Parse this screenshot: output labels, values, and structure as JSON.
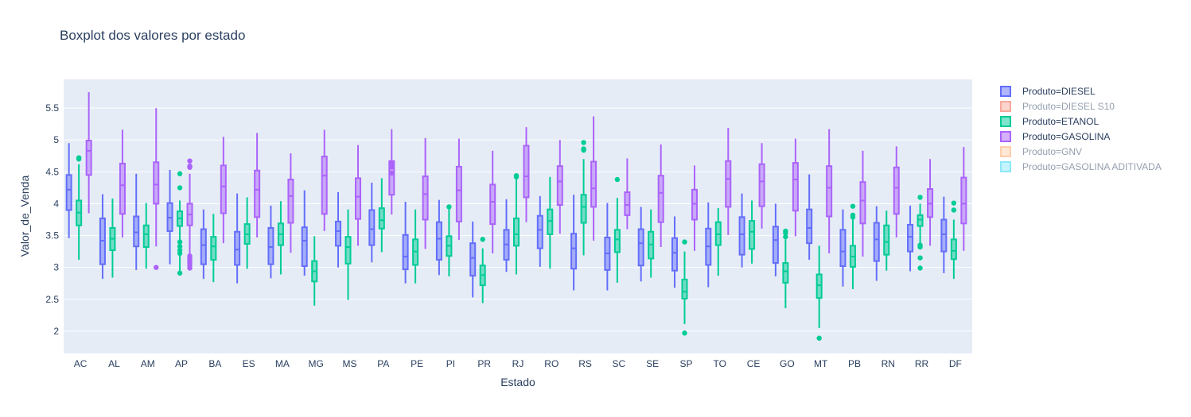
{
  "chart_data": {
    "type": "box",
    "title": "Boxplot dos valores por estado",
    "xlabel": "Estado",
    "ylabel": "Valor_de_Venda",
    "ylim": [
      1.65,
      5.95
    ],
    "yticks": [
      2,
      2.5,
      3,
      3.5,
      4,
      4.5,
      5,
      5.5
    ],
    "ytick_labels": [
      "2",
      "2.5",
      "3",
      "3.5",
      "4",
      "4.5",
      "5",
      "5.5"
    ],
    "categories": [
      "AC",
      "AL",
      "AM",
      "AP",
      "BA",
      "ES",
      "MA",
      "MG",
      "MS",
      "PA",
      "PE",
      "PI",
      "PR",
      "RJ",
      "RO",
      "RS",
      "SC",
      "SE",
      "SP",
      "TO",
      "CE",
      "GO",
      "MT",
      "PB",
      "RN",
      "RR",
      "DF"
    ],
    "legend_position": "right",
    "grid": true,
    "legend": [
      {
        "label": "Produto=DIESEL",
        "color": "#636efa",
        "visible": true
      },
      {
        "label": "Produto=DIESEL S10",
        "color": "#ef553b",
        "visible": false
      },
      {
        "label": "Produto=ETANOL",
        "color": "#00cc96",
        "visible": true
      },
      {
        "label": "Produto=GASOLINA",
        "color": "#ab63fa",
        "visible": true
      },
      {
        "label": "Produto=GNV",
        "color": "#ffa15a",
        "visible": false
      },
      {
        "label": "Produto=GASOLINA ADITIVADA",
        "color": "#19d3f3",
        "visible": false
      }
    ],
    "series": [
      {
        "name": "Produto=DIESEL",
        "color": "#636efa",
        "boxes": [
          [
            3.46,
            3.9,
            4.22,
            4.45,
            4.95
          ],
          [
            2.82,
            3.05,
            3.42,
            3.77,
            4.15
          ],
          [
            2.96,
            3.33,
            3.55,
            3.8,
            4.47
          ],
          [
            3.05,
            3.57,
            3.78,
            4.01,
            4.53
          ],
          [
            2.82,
            3.05,
            3.35,
            3.6,
            3.91
          ],
          [
            2.75,
            3.04,
            3.28,
            3.56,
            4.16
          ],
          [
            2.83,
            3.05,
            3.32,
            3.62,
            3.97
          ],
          [
            2.87,
            3.02,
            3.42,
            3.63,
            4.21
          ],
          [
            3.0,
            3.34,
            3.57,
            3.72,
            4.18
          ],
          [
            3.08,
            3.35,
            3.6,
            3.9,
            4.33
          ],
          [
            2.75,
            2.97,
            3.17,
            3.51,
            4.03
          ],
          [
            2.88,
            3.12,
            3.45,
            3.71,
            4.06
          ],
          [
            2.53,
            2.87,
            3.15,
            3.38,
            3.72
          ],
          [
            2.93,
            3.12,
            3.36,
            3.59,
            4.07
          ],
          [
            3.01,
            3.3,
            3.59,
            3.81,
            4.12
          ],
          [
            2.64,
            2.98,
            3.3,
            3.53,
            4.14
          ],
          [
            2.64,
            2.96,
            3.22,
            3.47,
            4.01
          ],
          [
            2.78,
            3.03,
            3.38,
            3.6,
            3.95
          ],
          [
            2.68,
            2.95,
            3.23,
            3.46,
            3.8
          ],
          [
            2.69,
            3.04,
            3.33,
            3.61,
            4.02
          ],
          [
            3.0,
            3.2,
            3.52,
            3.79,
            4.16
          ],
          [
            2.86,
            3.07,
            3.43,
            3.64,
            4.0
          ],
          [
            3.12,
            3.38,
            3.62,
            3.91,
            4.46
          ],
          [
            2.7,
            3.02,
            3.25,
            3.59,
            3.91
          ],
          [
            2.79,
            3.1,
            3.44,
            3.7,
            3.96
          ],
          [
            2.94,
            3.25,
            3.48,
            3.67,
            3.97
          ],
          [
            2.91,
            3.25,
            3.52,
            3.75,
            4.11
          ]
        ],
        "outliers": [
          [],
          [],
          [],
          [],
          [],
          [],
          [],
          [],
          [],
          [],
          [],
          [],
          [],
          [],
          [],
          [],
          [],
          [],
          [],
          [],
          [],
          [],
          [],
          [],
          [],
          [],
          []
        ]
      },
      {
        "name": "Produto=ETANOL",
        "color": "#00cc96",
        "boxes": [
          [
            3.12,
            3.66,
            3.86,
            4.05,
            4.62
          ],
          [
            2.84,
            3.27,
            3.45,
            3.62,
            4.08
          ],
          [
            2.98,
            3.32,
            3.52,
            3.66,
            4.01
          ],
          [
            2.91,
            3.65,
            3.77,
            3.88,
            4.05
          ],
          [
            2.77,
            3.12,
            3.33,
            3.48,
            3.84
          ],
          [
            2.98,
            3.37,
            3.52,
            3.68,
            4.1
          ],
          [
            2.89,
            3.35,
            3.52,
            3.69,
            4.04
          ],
          [
            2.4,
            2.78,
            2.94,
            3.1,
            3.49
          ],
          [
            2.49,
            3.06,
            3.32,
            3.48,
            3.91
          ],
          [
            3.24,
            3.61,
            3.74,
            3.93,
            4.4
          ],
          [
            2.75,
            3.04,
            3.25,
            3.44,
            3.91
          ],
          [
            2.86,
            3.18,
            3.34,
            3.49,
            3.93
          ],
          [
            2.44,
            2.72,
            2.88,
            3.03,
            3.3
          ],
          [
            2.89,
            3.34,
            3.52,
            3.77,
            4.4
          ],
          [
            2.98,
            3.52,
            3.73,
            3.91,
            4.42
          ],
          [
            3.19,
            3.7,
            3.95,
            4.14,
            4.7
          ],
          [
            2.76,
            3.24,
            3.44,
            3.59,
            4.09
          ],
          [
            2.84,
            3.14,
            3.36,
            3.56,
            3.91
          ],
          [
            2.11,
            2.51,
            2.62,
            2.81,
            3.25
          ],
          [
            2.87,
            3.35,
            3.52,
            3.71,
            3.93
          ],
          [
            3.06,
            3.29,
            3.56,
            3.73,
            4.05
          ],
          [
            2.36,
            2.76,
            2.94,
            3.07,
            3.44
          ],
          [
            2.05,
            2.52,
            2.72,
            2.89,
            3.34
          ],
          [
            2.66,
            3.01,
            3.17,
            3.34,
            3.8
          ],
          [
            2.95,
            3.2,
            3.4,
            3.66,
            3.89
          ],
          [
            3.34,
            3.65,
            3.75,
            3.82,
            4.0
          ],
          [
            2.82,
            3.13,
            3.26,
            3.44,
            3.75
          ]
        ],
        "outliers": [
          [
            4.7,
            4.72
          ],
          [],
          [],
          [
            2.91,
            3.22,
            3.27,
            3.33,
            3.4,
            4.25,
            4.47
          ],
          [],
          [],
          [],
          [],
          [],
          [],
          [],
          [
            3.95
          ],
          [
            3.44
          ],
          [
            4.42,
            4.44
          ],
          [],
          [
            4.84,
            4.86,
            4.96
          ],
          [
            4.38
          ],
          [],
          [
            1.97,
            3.4
          ],
          [],
          [],
          [
            3.48,
            3.54,
            3.57
          ],
          [
            1.89
          ],
          [
            3.79,
            3.82,
            3.96
          ],
          [],
          [
            2.99,
            3.15,
            3.32,
            3.35,
            4.1
          ],
          [
            3.9,
            4.01
          ]
        ]
      },
      {
        "name": "Produto=GASOLINA",
        "color": "#ab63fa",
        "boxes": [
          [
            3.85,
            4.45,
            4.83,
            4.99,
            5.75
          ],
          [
            3.47,
            3.84,
            4.29,
            4.63,
            5.16
          ],
          [
            3.33,
            4.0,
            4.3,
            4.65,
            5.5
          ],
          [
            3.2,
            3.66,
            3.83,
            4.0,
            4.47
          ],
          [
            3.38,
            3.85,
            4.27,
            4.6,
            5.05
          ],
          [
            3.47,
            3.79,
            4.22,
            4.52,
            5.11
          ],
          [
            3.23,
            3.7,
            4.12,
            4.38,
            4.79
          ],
          [
            3.57,
            3.84,
            4.44,
            4.74,
            5.16
          ],
          [
            3.34,
            3.76,
            4.11,
            4.4,
            4.92
          ],
          [
            3.83,
            4.14,
            4.55,
            4.67,
            5.17
          ],
          [
            3.29,
            3.75,
            4.15,
            4.43,
            5.03
          ],
          [
            3.43,
            3.72,
            4.21,
            4.58,
            5.02
          ],
          [
            3.22,
            3.68,
            4.03,
            4.3,
            4.83
          ],
          [
            3.71,
            4.1,
            4.43,
            4.91,
            5.2
          ],
          [
            3.53,
            3.98,
            4.35,
            4.59,
            5.0
          ],
          [
            3.42,
            3.95,
            4.24,
            4.66,
            5.37
          ],
          [
            3.6,
            3.82,
            3.98,
            4.18,
            4.71
          ],
          [
            3.32,
            3.71,
            4.17,
            4.44,
            4.93
          ],
          [
            3.26,
            3.75,
            4.0,
            4.22,
            4.6
          ],
          [
            3.51,
            3.95,
            4.39,
            4.67,
            5.19
          ],
          [
            3.61,
            3.96,
            4.35,
            4.62,
            4.95
          ],
          [
            3.49,
            3.89,
            4.38,
            4.64,
            5.02
          ],
          [
            3.22,
            3.8,
            4.25,
            4.59,
            5.17
          ],
          [
            3.17,
            3.69,
            4.05,
            4.34,
            4.83
          ],
          [
            3.47,
            3.84,
            4.25,
            4.57,
            4.9
          ],
          [
            3.34,
            3.79,
            4.0,
            4.23,
            4.7
          ],
          [
            3.26,
            3.69,
            4.0,
            4.41,
            4.89
          ]
        ],
        "outliers": [
          [],
          [],
          [
            3.0
          ],
          [
            2.99,
            3.03,
            3.07,
            3.1,
            3.12,
            3.15,
            3.18,
            4.57,
            4.59,
            4.67
          ],
          [],
          [],
          [],
          [],
          [],
          [
            4.48,
            4.59,
            4.64
          ],
          [],
          [],
          [],
          [],
          [],
          [],
          [],
          [],
          [],
          [],
          [],
          [],
          [],
          [],
          [],
          [],
          []
        ]
      }
    ]
  }
}
